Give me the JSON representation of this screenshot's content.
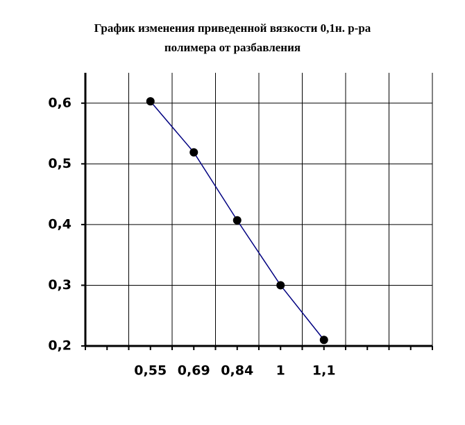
{
  "chart_data": {
    "type": "line",
    "title": [
      "График изменения приведенной вязкости  0,1н. р-ра",
      "полимера от разбавления"
    ],
    "categories": [
      null,
      "0,55",
      "0,69",
      "0,84",
      "1",
      "1,1",
      null,
      null
    ],
    "series": [
      {
        "color": "#000080",
        "marker_color": "#000000",
        "values": [
          null,
          0.603,
          0.519,
          0.407,
          0.3,
          0.21,
          null,
          null
        ]
      }
    ],
    "ylim": [
      0.2,
      0.65
    ],
    "yticks": [
      {
        "value": 0.2,
        "label": "0,2"
      },
      {
        "value": 0.3,
        "label": "0,3"
      },
      {
        "value": 0.4,
        "label": "0,4"
      },
      {
        "value": 0.5,
        "label": "0,5"
      },
      {
        "value": 0.6,
        "label": "0,6"
      }
    ],
    "grid": true
  }
}
